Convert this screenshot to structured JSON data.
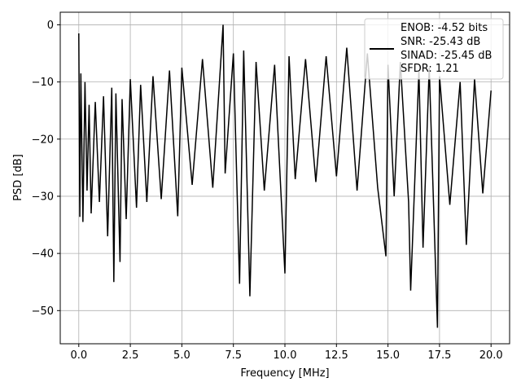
{
  "chart_data": {
    "type": "line",
    "xlabel": "Frequency [MHz]",
    "ylabel": "PSD [dB]",
    "xlim": [
      -0.9,
      20.9
    ],
    "ylim": [
      -55.8,
      2.2
    ],
    "xticks": [
      0.0,
      2.5,
      5.0,
      7.5,
      10.0,
      12.5,
      15.0,
      17.5,
      20.0
    ],
    "xtick_labels": [
      "0.0",
      "2.5",
      "5.0",
      "7.5",
      "10.0",
      "12.5",
      "15.0",
      "17.5",
      "20.0"
    ],
    "yticks": [
      0,
      -10,
      -20,
      -30,
      -40,
      -50
    ],
    "ytick_labels": [
      "0",
      "−10",
      "−20",
      "−30",
      "−40",
      "−50"
    ],
    "grid": true,
    "legend_position": "top-right",
    "legend_lines": [
      "ENOB: -4.52 bits",
      "SNR: -25.43 dB",
      "SINAD: -25.45 dB",
      "SFDR: 1.21"
    ],
    "series_color": "#000000",
    "series": [
      {
        "x": [
          0.0,
          0.05,
          0.1,
          0.2,
          0.3,
          0.4,
          0.5,
          0.6,
          0.8,
          1.0,
          1.2,
          1.4,
          1.6,
          1.7,
          1.8,
          2.0,
          2.1,
          2.3,
          2.5,
          2.8,
          3.0,
          3.3,
          3.6,
          4.0,
          4.4,
          4.8,
          5.0,
          5.5,
          6.0,
          6.5,
          7.0,
          7.1,
          7.5,
          7.8,
          8.0,
          8.3,
          8.6,
          9.0,
          9.5,
          10.0,
          10.2,
          10.5,
          11.0,
          11.5,
          12.0,
          12.5,
          13.0,
          13.5,
          14.0,
          14.5,
          14.9,
          15.0,
          15.3,
          15.6,
          16.0,
          16.1,
          16.5,
          16.7,
          17.0,
          17.4,
          17.5,
          18.0,
          18.5,
          18.8,
          19.2,
          19.6,
          20.0
        ],
        "y": [
          -1.5,
          -33.6,
          -8.5,
          -34.5,
          -10.0,
          -29.0,
          -14.0,
          -33.0,
          -13.5,
          -31.0,
          -12.5,
          -37.0,
          -11.0,
          -45.0,
          -12.0,
          -41.5,
          -13.0,
          -34.0,
          -9.5,
          -32.0,
          -10.5,
          -31.0,
          -9.0,
          -30.5,
          -8.0,
          -33.5,
          -7.5,
          -28.0,
          -6.0,
          -28.5,
          0.0,
          -26.0,
          -5.0,
          -45.3,
          -4.5,
          -47.5,
          -6.5,
          -29.0,
          -7.0,
          -43.5,
          -5.5,
          -27.0,
          -6.0,
          -27.5,
          -5.5,
          -26.5,
          -4.0,
          -29.0,
          -5.0,
          -28.5,
          -40.5,
          -7.0,
          -30.0,
          -6.5,
          -31.0,
          -46.5,
          -8.0,
          -39.0,
          -7.5,
          -53.0,
          -9.0,
          -31.5,
          -10.0,
          -38.5,
          -9.5,
          -29.5,
          -11.5
        ]
      }
    ]
  }
}
